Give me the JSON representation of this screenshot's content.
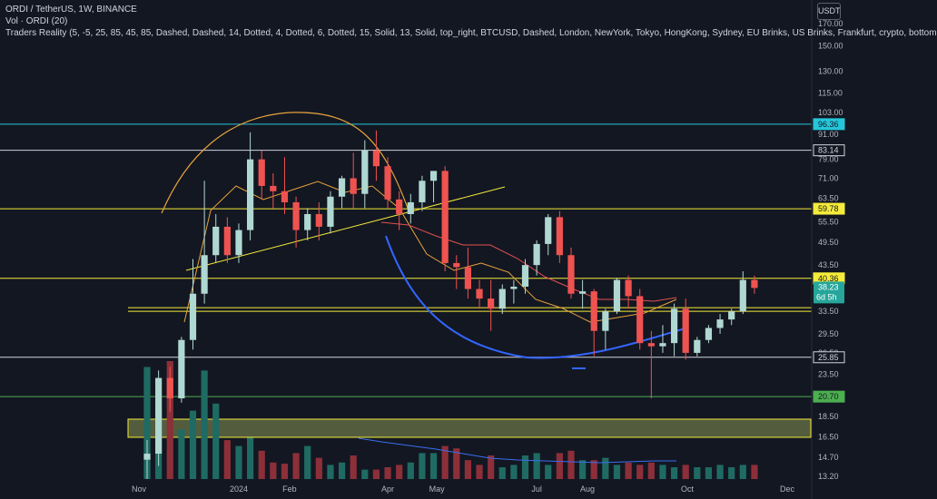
{
  "header": {
    "title": "ORDI / TetherUS, 1W, BINANCE",
    "volume_label": "Vol · ORDI (20)",
    "indicator_label": "Traders Reality (5, -5, 25, 85, 45, 85, Dashed, Dashed, 14, Dotted, 4, Dotted, 6, Dotted, 15, Solid, 13, Solid, top_right, BTCUSD, Dashed, London, NewYork, Tokyo, HongKong, Sydney, EU Brinks, US Brinks, Frankfurt, crypto, bottom"
  },
  "currency_button": "USDT",
  "chart_data": {
    "type": "candlestick",
    "price_scale": "log",
    "ylim": [
      12.8,
      185
    ],
    "y_ticks": [
      "170.00",
      "150.00",
      "130.00",
      "115.00",
      "103.00",
      "91.00",
      "79.00",
      "71.00",
      "63.50",
      "55.50",
      "49.50",
      "43.50",
      "33.50",
      "29.50",
      "26.50",
      "23.50",
      "18.50",
      "16.50",
      "14.70",
      "13.20"
    ],
    "x_ticks": [
      "Nov",
      "2024",
      "Feb",
      "Apr",
      "May",
      "Jul",
      "Aug",
      "Oct",
      "Dec"
    ],
    "horizontal_levels": [
      {
        "label": "96.36",
        "value": 96.36,
        "color": "#26c6da"
      },
      {
        "label": "83.14",
        "value": 83.14,
        "color": "#d1d4dc"
      },
      {
        "label": "59.78",
        "value": 59.78,
        "color": "#f5eb3b"
      },
      {
        "label": "40.36",
        "value": 40.36,
        "color": "#f5eb3b"
      },
      {
        "label": "25.85",
        "value": 25.85,
        "color": "#d1d4dc"
      },
      {
        "label": "20.70",
        "value": 20.7,
        "color": "#4caf50"
      }
    ],
    "last_price": {
      "label": "38.23",
      "countdown": "6d 5h",
      "value": 38.23,
      "color": "#26a69a"
    },
    "colors": {
      "up": "#b0d8d2",
      "down": "#ef5350",
      "vol_up": "#1f6b63",
      "vol_down": "#8c2f39"
    },
    "candles": [
      {
        "date": "2023-11-06",
        "o": 14.5,
        "h": 16.2,
        "l": 13.0,
        "c": 15.0
      },
      {
        "date": "2023-11-13",
        "o": 15.0,
        "h": 24.0,
        "l": 14.0,
        "c": 23.0
      },
      {
        "date": "2023-11-20",
        "o": 23.0,
        "h": 24.5,
        "l": 19.0,
        "c": 20.5
      },
      {
        "date": "2023-11-27",
        "o": 20.5,
        "h": 29.0,
        "l": 20.0,
        "c": 28.5
      },
      {
        "date": "2023-12-04",
        "o": 28.5,
        "h": 45.0,
        "l": 27.0,
        "c": 37.0
      },
      {
        "date": "2023-12-11",
        "o": 37.0,
        "h": 70.0,
        "l": 35.0,
        "c": 46.0
      },
      {
        "date": "2023-12-18",
        "o": 46.0,
        "h": 58.0,
        "l": 44.0,
        "c": 54.0
      },
      {
        "date": "2023-12-25",
        "o": 54.0,
        "h": 57.0,
        "l": 44.0,
        "c": 46.0
      },
      {
        "date": "2024-01-01",
        "o": 46.0,
        "h": 55.0,
        "l": 44.0,
        "c": 53.0
      },
      {
        "date": "2024-01-08",
        "o": 53.0,
        "h": 92.0,
        "l": 50.0,
        "c": 79.0
      },
      {
        "date": "2024-01-15",
        "o": 79.0,
        "h": 83.0,
        "l": 63.0,
        "c": 68.0
      },
      {
        "date": "2024-01-22",
        "o": 68.0,
        "h": 73.0,
        "l": 60.0,
        "c": 66.0
      },
      {
        "date": "2024-01-29",
        "o": 66.0,
        "h": 80.0,
        "l": 58.0,
        "c": 62.0
      },
      {
        "date": "2024-02-05",
        "o": 62.0,
        "h": 64.0,
        "l": 48.0,
        "c": 53.0
      },
      {
        "date": "2024-02-12",
        "o": 53.0,
        "h": 60.0,
        "l": 50.0,
        "c": 58.0
      },
      {
        "date": "2024-02-19",
        "o": 58.0,
        "h": 62.0,
        "l": 50.0,
        "c": 54.0
      },
      {
        "date": "2024-02-26",
        "o": 54.0,
        "h": 66.0,
        "l": 52.0,
        "c": 64.0
      },
      {
        "date": "2024-03-04",
        "o": 64.0,
        "h": 72.0,
        "l": 60.0,
        "c": 71.0
      },
      {
        "date": "2024-03-11",
        "o": 71.0,
        "h": 82.0,
        "l": 60.0,
        "c": 65.0
      },
      {
        "date": "2024-03-18",
        "o": 65.0,
        "h": 88.0,
        "l": 60.0,
        "c": 83.0
      },
      {
        "date": "2024-03-25",
        "o": 83.0,
        "h": 93.0,
        "l": 70.0,
        "c": 76.0
      },
      {
        "date": "2024-04-01",
        "o": 76.0,
        "h": 80.0,
        "l": 60.0,
        "c": 63.0
      },
      {
        "date": "2024-04-08",
        "o": 63.0,
        "h": 66.0,
        "l": 53.0,
        "c": 58.0
      },
      {
        "date": "2024-04-15",
        "o": 58.0,
        "h": 65.0,
        "l": 55.0,
        "c": 62.0
      },
      {
        "date": "2024-04-22",
        "o": 62.0,
        "h": 72.0,
        "l": 59.0,
        "c": 70.0
      },
      {
        "date": "2024-04-29",
        "o": 70.0,
        "h": 74.0,
        "l": 62.0,
        "c": 74.0
      },
      {
        "date": "2024-05-06",
        "o": 74.0,
        "h": 76.0,
        "l": 42.0,
        "c": 44.0
      },
      {
        "date": "2024-05-13",
        "o": 44.0,
        "h": 46.0,
        "l": 38.0,
        "c": 43.0
      },
      {
        "date": "2024-05-20",
        "o": 43.0,
        "h": 48.0,
        "l": 36.0,
        "c": 38.0
      },
      {
        "date": "2024-05-27",
        "o": 38.0,
        "h": 40.0,
        "l": 34.0,
        "c": 36.0
      },
      {
        "date": "2024-06-03",
        "o": 36.0,
        "h": 40.0,
        "l": 30.0,
        "c": 34.0
      },
      {
        "date": "2024-06-10",
        "o": 34.0,
        "h": 39.0,
        "l": 33.0,
        "c": 38.0
      },
      {
        "date": "2024-06-17",
        "o": 38.0,
        "h": 40.0,
        "l": 35.0,
        "c": 38.5
      },
      {
        "date": "2024-06-24",
        "o": 38.5,
        "h": 45.0,
        "l": 37.0,
        "c": 43.5
      },
      {
        "date": "2024-07-01",
        "o": 43.5,
        "h": 50.0,
        "l": 41.0,
        "c": 49.0
      },
      {
        "date": "2024-07-08",
        "o": 49.0,
        "h": 58.0,
        "l": 46.0,
        "c": 57.0
      },
      {
        "date": "2024-07-15",
        "o": 57.0,
        "h": 59.0,
        "l": 44.0,
        "c": 46.0
      },
      {
        "date": "2024-07-22",
        "o": 46.0,
        "h": 48.0,
        "l": 36.0,
        "c": 37.0
      },
      {
        "date": "2024-07-29",
        "o": 37.0,
        "h": 40.0,
        "l": 34.0,
        "c": 37.5
      },
      {
        "date": "2024-08-05",
        "o": 37.5,
        "h": 38.0,
        "l": 26.0,
        "c": 30.0
      },
      {
        "date": "2024-08-12",
        "o": 30.0,
        "h": 34.0,
        "l": 27.0,
        "c": 33.5
      },
      {
        "date": "2024-08-19",
        "o": 33.5,
        "h": 40.5,
        "l": 33.0,
        "c": 40.0
      },
      {
        "date": "2024-08-26",
        "o": 40.0,
        "h": 41.0,
        "l": 34.0,
        "c": 36.5
      },
      {
        "date": "2024-09-02",
        "o": 36.5,
        "h": 38.0,
        "l": 27.0,
        "c": 28.0
      },
      {
        "date": "2024-09-09",
        "o": 28.0,
        "h": 30.0,
        "l": 20.5,
        "c": 27.5
      },
      {
        "date": "2024-09-16",
        "o": 27.5,
        "h": 31.0,
        "l": 26.5,
        "c": 28.0
      },
      {
        "date": "2024-09-23",
        "o": 28.0,
        "h": 35.0,
        "l": 26.0,
        "c": 34.0
      },
      {
        "date": "2024-09-30",
        "o": 34.0,
        "h": 36.0,
        "l": 25.5,
        "c": 26.5
      },
      {
        "date": "2024-10-07",
        "o": 26.5,
        "h": 29.0,
        "l": 26.0,
        "c": 28.5
      },
      {
        "date": "2024-10-14",
        "o": 28.5,
        "h": 31.0,
        "l": 28.0,
        "c": 30.5
      },
      {
        "date": "2024-10-21",
        "o": 30.5,
        "h": 33.0,
        "l": 29.5,
        "c": 32.0
      },
      {
        "date": "2024-10-28",
        "o": 32.0,
        "h": 34.0,
        "l": 31.0,
        "c": 33.5
      },
      {
        "date": "2024-11-04",
        "o": 33.5,
        "h": 42.0,
        "l": 33.0,
        "c": 40.0
      },
      {
        "date": "2024-11-11",
        "o": 40.0,
        "h": 41.0,
        "l": 37.0,
        "c": 38.23
      }
    ],
    "volume": [
      95,
      62,
      100,
      42,
      58,
      92,
      64,
      33,
      28,
      35,
      24,
      14,
      13,
      22,
      28,
      18,
      12,
      14,
      20,
      8,
      8,
      10,
      12,
      14,
      22,
      22,
      28,
      26,
      16,
      12,
      20,
      10,
      12,
      20,
      22,
      12,
      22,
      24,
      16,
      16,
      18,
      12,
      14,
      12,
      14,
      12,
      10,
      12,
      10,
      10,
      12,
      10,
      12,
      12
    ]
  }
}
